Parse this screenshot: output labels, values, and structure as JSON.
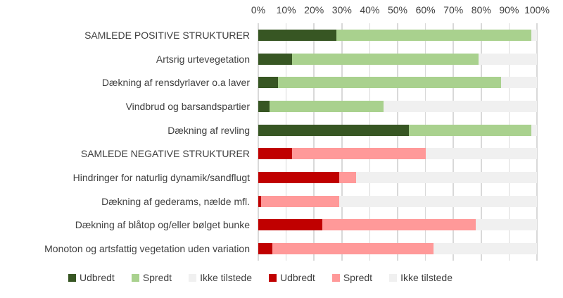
{
  "chart_data": {
    "type": "bar",
    "orientation": "horizontal-stacked",
    "title": "",
    "x_axis": {
      "min": 0,
      "max": 100,
      "tick_labels": [
        "0%",
        "10%",
        "20%",
        "30%",
        "40%",
        "50%",
        "60%",
        "70%",
        "80%",
        "90%",
        "100%"
      ],
      "grid": true,
      "position": "top"
    },
    "rows": [
      {
        "label": "SAMLEDE POSITIVE STRUKTURER",
        "palette": "green",
        "udbredt": 28,
        "spredt": 70,
        "ikke_tilstede": 2
      },
      {
        "label": "Artsrig urtevegetation",
        "palette": "green",
        "udbredt": 12,
        "spredt": 67,
        "ikke_tilstede": 21
      },
      {
        "label": "Dækning af rensdyrlaver o.a laver",
        "palette": "green",
        "udbredt": 7,
        "spredt": 80,
        "ikke_tilstede": 13
      },
      {
        "label": "Vindbrud og barsandspartier",
        "palette": "green",
        "udbredt": 4,
        "spredt": 41,
        "ikke_tilstede": 55
      },
      {
        "label": "Dækning af revling",
        "palette": "green",
        "udbredt": 54,
        "spredt": 44,
        "ikke_tilstede": 2
      },
      {
        "label": "SAMLEDE NEGATIVE STRUKTURER",
        "palette": "red",
        "udbredt": 12,
        "spredt": 48,
        "ikke_tilstede": 40
      },
      {
        "label": "Hindringer for naturlig dynamik/sandflugt",
        "palette": "red",
        "udbredt": 29,
        "spredt": 6,
        "ikke_tilstede": 65
      },
      {
        "label": "Dækning af gederams, nælde mfl.",
        "palette": "red",
        "udbredt": 1,
        "spredt": 28,
        "ikke_tilstede": 71
      },
      {
        "label": "Dækning af blåtop og/eller bølget bunke",
        "palette": "red",
        "udbredt": 23,
        "spredt": 55,
        "ikke_tilstede": 22
      },
      {
        "label": "Monoton og artsfattig vegetation uden variation",
        "palette": "red",
        "udbredt": 5,
        "spredt": 58,
        "ikke_tilstede": 37
      }
    ],
    "legend": [
      {
        "label": "Udbredt",
        "color": "#375623"
      },
      {
        "label": "Spredt",
        "color": "#a9d18e"
      },
      {
        "label": "Ikke tilstede",
        "color": "#f0f0f0"
      },
      {
        "label": "Udbredt",
        "color": "#c00000"
      },
      {
        "label": "Spredt",
        "color": "#ff9999"
      },
      {
        "label": "Ikke tilstede",
        "color": "#f0f0f0"
      }
    ],
    "colors": {
      "green_udbredt": "#375623",
      "green_spredt": "#a9d18e",
      "red_udbredt": "#c00000",
      "red_spredt": "#ff9999",
      "ikke_tilstede": "#f0f0f0",
      "gridline": "#d9d9d9",
      "text": "#404040"
    },
    "legend_position": "bottom"
  }
}
